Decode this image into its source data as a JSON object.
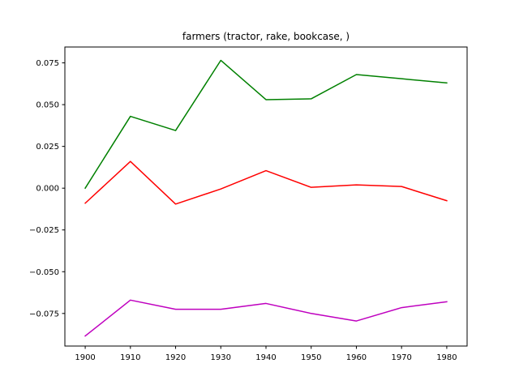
{
  "chart_data": {
    "type": "line",
    "title": "farmers (tractor, rake, bookcase, )",
    "xlabel": "",
    "ylabel": "",
    "x": [
      1900,
      1910,
      1920,
      1930,
      1940,
      1950,
      1960,
      1970,
      1980
    ],
    "xlim": [
      1895.5,
      1984.5
    ],
    "ylim": [
      -0.0945,
      0.0845
    ],
    "xticks": [
      1900,
      1910,
      1920,
      1930,
      1940,
      1950,
      1960,
      1970,
      1980
    ],
    "yticks": [
      -0.075,
      -0.05,
      -0.025,
      0.0,
      0.025,
      0.05,
      0.075
    ],
    "ytick_labels": [
      "−0.075",
      "−0.050",
      "−0.025",
      "0.000",
      "0.025",
      "0.050",
      "0.075"
    ],
    "grid": false,
    "series": [
      {
        "color": "#008000",
        "values": [
          0.0,
          0.043,
          0.0345,
          0.0765,
          0.053,
          0.0535,
          0.068,
          0.0655,
          0.063
        ]
      },
      {
        "color": "#ff0000",
        "values": [
          -0.009,
          0.016,
          -0.0095,
          -0.0005,
          0.0105,
          0.0005,
          0.002,
          0.001,
          -0.0075
        ]
      },
      {
        "color": "#bf00bf",
        "values": [
          -0.0885,
          -0.067,
          -0.0725,
          -0.0725,
          -0.069,
          -0.075,
          -0.0795,
          -0.0715,
          -0.068
        ]
      }
    ]
  }
}
